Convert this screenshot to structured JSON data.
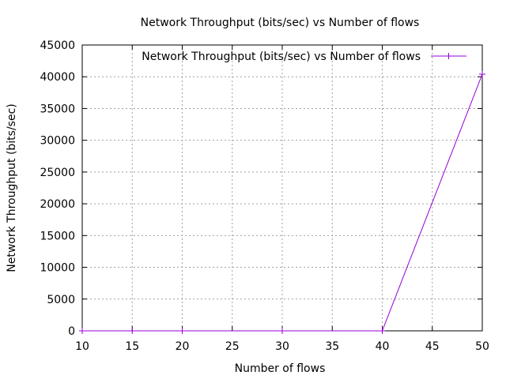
{
  "chart_data": {
    "type": "line",
    "title": "Network Throughput (bits/sec) vs Number of flows",
    "xlabel": "Number of flows",
    "ylabel": "Network Throughput (bits/sec)",
    "xlim": [
      10,
      50
    ],
    "ylim": [
      0,
      45000
    ],
    "xticks": [
      10,
      15,
      20,
      25,
      30,
      35,
      40,
      45,
      50
    ],
    "yticks": [
      0,
      5000,
      10000,
      15000,
      20000,
      25000,
      30000,
      35000,
      40000,
      45000
    ],
    "grid": true,
    "legend_position": "top-right",
    "series": [
      {
        "name": "Network Throughput (bits/sec) vs Number of flows",
        "color": "#9400d3",
        "x": [
          10,
          15,
          20,
          30,
          40,
          50
        ],
        "y": [
          0,
          0,
          0,
          0,
          0,
          40400
        ]
      }
    ]
  }
}
